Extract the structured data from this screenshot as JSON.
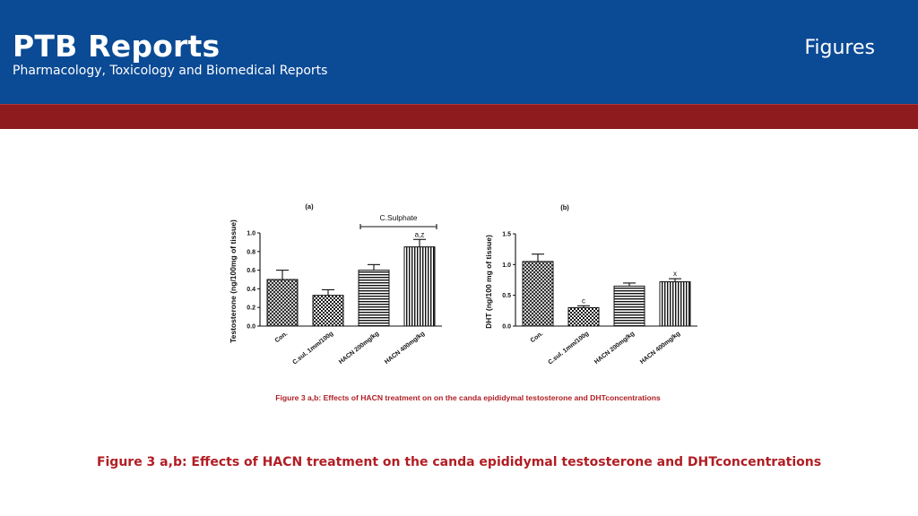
{
  "header": {
    "title": "PTB Reports",
    "subtitle": "Pharmacology, Toxicology and Biomedical Reports",
    "section": "Figures"
  },
  "colors": {
    "header_bg": "#0b4a94",
    "band": "#8e1b1e",
    "caption": "#b01e24",
    "figure_caption": "#b01e24"
  },
  "figure": {
    "inner_caption": "Figure 3 a,b: Effects of HACN treatment on on the canda epididymal testosterone and DHTconcentrations"
  },
  "caption": "Figure 3 a,b: Effects of HACN treatment on the canda epididymal testosterone and DHTconcentrations",
  "chart_data": [
    {
      "type": "bar",
      "title": "(a)",
      "ylabel": "Testosterone (ng/100mg of tissue)",
      "categories": [
        "Con.",
        "C.sul. 1mm/100g",
        "HACN 200mg/kg",
        "HACN 400mg/kg"
      ],
      "values": [
        0.5,
        0.33,
        0.6,
        0.85
      ],
      "errors": [
        0.1,
        0.06,
        0.06,
        0.08
      ],
      "bar_labels": [
        "",
        "",
        "",
        "a,z"
      ],
      "patterns": [
        "crosshatch",
        "checker",
        "hlines",
        "vlines"
      ],
      "ylim": [
        0,
        1.0
      ],
      "yticks": [
        "0.0",
        "0.2",
        "0.4",
        "0.6",
        "0.8",
        "1.0"
      ],
      "annotation": "C.Sulphate"
    },
    {
      "type": "bar",
      "title": "(b)",
      "ylabel": "DHT (ng/100 mg of tissue)",
      "categories": [
        "Con.",
        "C.sul. 1mm/100g",
        "HACN 200mg/kg",
        "HACN 400mg/kg"
      ],
      "values": [
        1.05,
        0.3,
        0.65,
        0.72
      ],
      "errors": [
        0.12,
        0.03,
        0.05,
        0.05
      ],
      "bar_labels": [
        "",
        "c",
        "",
        "x"
      ],
      "patterns": [
        "crosshatch",
        "checker",
        "hlines",
        "vlines"
      ],
      "ylim": [
        0,
        1.5
      ],
      "yticks": [
        "0.0",
        "0.5",
        "1.0",
        "1.5"
      ]
    }
  ]
}
